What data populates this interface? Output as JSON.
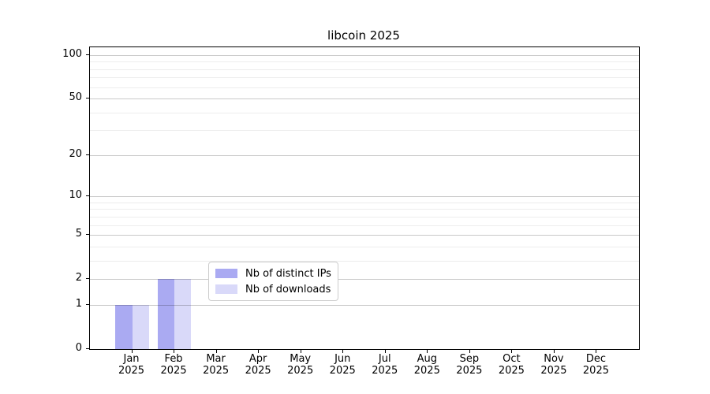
{
  "title": "libcoin 2025",
  "chart_data": {
    "type": "bar",
    "title": "libcoin 2025",
    "xlabel": "",
    "ylabel": "",
    "categories": [
      "Jan",
      "Feb",
      "Mar",
      "Apr",
      "May",
      "Jun",
      "Jul",
      "Aug",
      "Sep",
      "Oct",
      "Nov",
      "Dec"
    ],
    "year_label": "2025",
    "series": [
      {
        "name": "Nb of distinct IPs",
        "color": "#aaaaf2",
        "values": [
          1,
          2,
          0,
          0,
          0,
          0,
          0,
          0,
          0,
          0,
          0,
          0
        ]
      },
      {
        "name": "Nb of downloads",
        "color": "#d9d9f9",
        "values": [
          1,
          2,
          0,
          0,
          0,
          0,
          0,
          0,
          0,
          0,
          0,
          0
        ]
      }
    ],
    "yscale": "log1p",
    "yticks": [
      0,
      1,
      2,
      5,
      10,
      20,
      50,
      100
    ],
    "ytick_labels": [
      "0",
      "1",
      "2",
      "5",
      "10",
      "20",
      "50",
      "100"
    ],
    "yticks_minor": [
      3,
      4,
      6,
      7,
      8,
      9,
      30,
      40,
      60,
      70,
      80,
      90
    ],
    "ylim": [
      0,
      113
    ],
    "grid": "horizontal",
    "legend_position": "bottom-center",
    "colors": {
      "axis": "#000000",
      "grid_major": "rgba(0,0,0,0.21)",
      "grid_minor": "rgba(0,0,0,0.07)",
      "legend_border": "#cccccc",
      "background": "#ffffff"
    }
  }
}
